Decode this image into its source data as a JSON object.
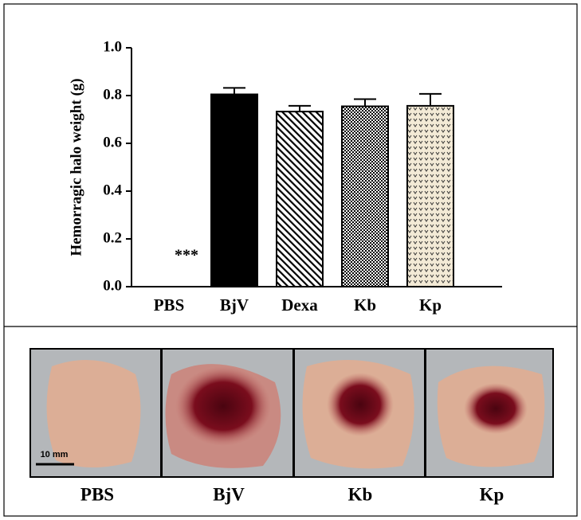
{
  "chart_data": {
    "type": "bar",
    "ylabel": "Hemorragic halo weight (g)",
    "categories": [
      "PBS",
      "BjV",
      "Dexa",
      "Kb",
      "Kp"
    ],
    "series": [
      {
        "values": [
          0,
          0.805,
          0.733,
          0.755,
          0.757
        ],
        "errors": [
          0,
          0.027,
          0.024,
          0.03,
          0.05
        ],
        "colors": [
          "#000000",
          "#000000",
          "#000000",
          "#000000",
          "#f3ead6"
        ],
        "patterns": [
          "solid",
          "solid",
          "diagonal",
          "checker",
          "dots"
        ]
      }
    ],
    "annotation": "***",
    "ylim": [
      0,
      1
    ],
    "yticks": [
      {
        "value": 0,
        "label": "0.0"
      },
      {
        "value": 0.2,
        "label": "0.2"
      },
      {
        "value": 0.4,
        "label": "0.4"
      },
      {
        "value": 0.6,
        "label": "0.6"
      },
      {
        "value": 0.8,
        "label": "0.8"
      },
      {
        "value": 1,
        "label": "1.0"
      }
    ]
  },
  "photos": {
    "labels": [
      "PBS",
      "BjV",
      "Kb",
      "Kp"
    ],
    "scale_bar": "10 mm"
  }
}
